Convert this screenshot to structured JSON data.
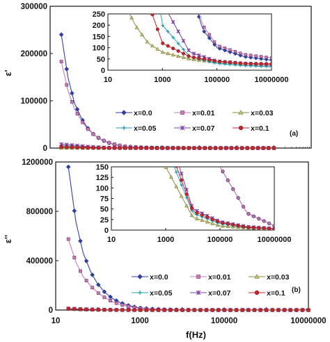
{
  "chart_data": [
    {
      "type": "line",
      "panel": "(a)",
      "x_scale": "log",
      "ylabel": "ε'",
      "xlim": [
        10,
        100000000
      ],
      "ylim": [
        0,
        300000
      ],
      "yticks": [
        "0",
        "100000",
        "200000",
        "300000"
      ],
      "legend_position": "center-right",
      "series": [
        {
          "name": "x=0.0",
          "x": [
            20,
            30,
            45,
            70,
            100,
            150,
            220,
            330,
            500,
            750,
            1000,
            2000,
            5000,
            10000,
            30000,
            100000,
            1000000,
            10000000
          ],
          "values": [
            240000,
            150000,
            95000,
            62000,
            43000,
            28000,
            19000,
            12500,
            8000,
            5000,
            3500,
            1700,
            700,
            380,
            180,
            100,
            60,
            45
          ]
        },
        {
          "name": "x=0.01",
          "x": [
            20,
            30,
            45,
            70,
            100,
            150,
            220,
            330,
            500,
            750,
            1000,
            2000,
            5000,
            10000,
            30000,
            100000,
            1000000,
            10000000
          ],
          "values": [
            183000,
            122000,
            83000,
            57000,
            41000,
            28000,
            19500,
            13000,
            8500,
            5500,
            3800,
            1900,
            750,
            400,
            200,
            110,
            70,
            55
          ]
        },
        {
          "name": "x=0.03",
          "x": [
            20,
            40,
            100,
            300,
            1000,
            10000,
            100000,
            1000000,
            10000000
          ],
          "values": [
            400,
            300,
            200,
            120,
            80,
            50,
            35,
            25,
            20
          ]
        },
        {
          "name": "x=0.05",
          "x": [
            20,
            40,
            100,
            300,
            1000,
            10000,
            100000,
            1000000,
            10000000
          ],
          "values": [
            5000,
            3500,
            1500,
            600,
            200,
            60,
            30,
            20,
            15
          ]
        },
        {
          "name": "x=0.07",
          "x": [
            20,
            40,
            100,
            300,
            1000,
            10000,
            100000,
            1000000,
            10000000
          ],
          "values": [
            8000,
            6000,
            3000,
            1000,
            300,
            80,
            40,
            30,
            25
          ]
        },
        {
          "name": "x=0.1",
          "x": [
            20,
            40,
            100,
            300,
            1000,
            10000,
            100000,
            1000000,
            10000000
          ],
          "values": [
            2500,
            1800,
            800,
            300,
            120,
            60,
            40,
            30,
            28
          ]
        }
      ],
      "inset": {
        "xlim": [
          10,
          10000000
        ],
        "ylim": [
          0,
          250
        ],
        "xticks": [
          "10",
          "1000",
          "100000",
          "10000000"
        ],
        "yticks": [
          "0",
          "50",
          "100",
          "150",
          "200",
          "250"
        ]
      }
    },
    {
      "type": "line",
      "panel": "(b)",
      "x_scale": "log",
      "xlabel": "f(Hz)",
      "ylabel": "ε''",
      "xlim": [
        10,
        10000000
      ],
      "ylim": [
        0,
        1200000
      ],
      "xticks": [
        "10",
        "1000",
        "100000",
        "10000000"
      ],
      "yticks": [
        "0",
        "400000",
        "800000",
        "1200000"
      ],
      "legend_position": "bottom-right",
      "series": [
        {
          "name": "x=0.0",
          "x": [
            20,
            30,
            45,
            70,
            100,
            150,
            220,
            330,
            500,
            750,
            1000,
            2000,
            5000,
            10000,
            30000,
            100000,
            1000000,
            10000000
          ],
          "values": [
            1160000,
            720000,
            460000,
            300000,
            210000,
            140000,
            95000,
            62000,
            40000,
            26000,
            18000,
            8500,
            3000,
            1500,
            500,
            150,
            40,
            10
          ]
        },
        {
          "name": "x=0.01",
          "x": [
            20,
            30,
            45,
            70,
            100,
            150,
            220,
            330,
            500,
            750,
            1000,
            2000,
            5000,
            10000,
            30000,
            100000,
            1000000,
            10000000
          ],
          "values": [
            575000,
            390000,
            270000,
            190000,
            140000,
            98000,
            68000,
            46000,
            30000,
            19500,
            13500,
            6500,
            2500,
            1200,
            450,
            150,
            40,
            10
          ]
        },
        {
          "name": "x=0.03",
          "x": [
            20,
            40,
            100,
            300,
            1000,
            10000,
            100000,
            1000000,
            10000000
          ],
          "values": [
            8000,
            5000,
            2000,
            500,
            150,
            30,
            10,
            5,
            3
          ]
        },
        {
          "name": "x=0.05",
          "x": [
            20,
            40,
            100,
            300,
            1000,
            10000,
            100000,
            1000000,
            10000000
          ],
          "values": [
            10000,
            6000,
            2500,
            600,
            200,
            40,
            15,
            6,
            3
          ]
        },
        {
          "name": "x=0.07",
          "x": [
            20,
            40,
            100,
            300,
            1000,
            10000,
            100000,
            1000000,
            10000000
          ],
          "values": [
            12000,
            7000,
            3000,
            800,
            250,
            50,
            20,
            8,
            4
          ]
        },
        {
          "name": "x=0.1",
          "x": [
            20,
            40,
            100,
            300,
            1000,
            10000,
            100000,
            1000000,
            10000000
          ],
          "values": [
            11000,
            6500,
            2800,
            700,
            220,
            45,
            18,
            7,
            3
          ]
        }
      ],
      "inset": {
        "xlim": [
          10,
          10000000
        ],
        "ylim": [
          0,
          150
        ],
        "xticks": [
          "10",
          "1000",
          "100000",
          "10000000"
        ],
        "yticks": [
          "0",
          "25",
          "50",
          "75",
          "100",
          "125",
          "150"
        ]
      }
    }
  ],
  "styles": {
    "colors": {
      "x=0.0": "#2f3f9e",
      "x=0.01": "#c77bb9",
      "x=0.03": "#8a8a3a",
      "x=0.05": "#2aa1b5",
      "x=0.07": "#7b3fa0",
      "x=0.1": "#c0262c"
    },
    "markers": {
      "x=0.0": "diamond",
      "x=0.01": "square",
      "x=0.03": "triangle",
      "x=0.05": "plus",
      "x=0.07": "star",
      "x=0.1": "circle"
    }
  }
}
